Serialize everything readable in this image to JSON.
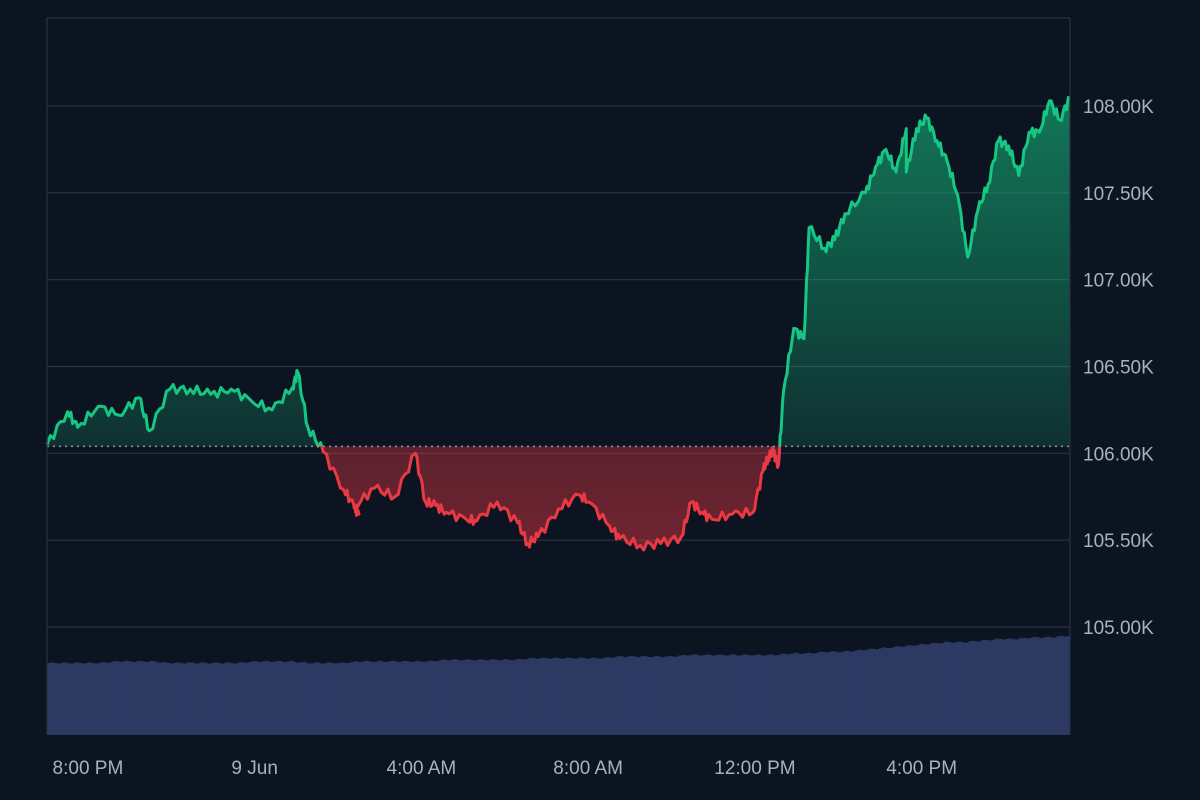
{
  "colors": {
    "background": "#0d1421",
    "grid": "#2a3344",
    "axis_text": "#a7b1c2",
    "up": "#16c784",
    "down": "#ea3943",
    "volume": "#2c3a63",
    "baseline": "#8c96a8"
  },
  "chart_data": {
    "type": "area",
    "title": "",
    "xlabel": "",
    "ylabel": "",
    "baseline": 106040,
    "ylim": [
      104400,
      108600
    ],
    "xlim": [
      0,
      1
    ],
    "y_ticks": [
      {
        "value": 105000,
        "label": "105.00K"
      },
      {
        "value": 105500,
        "label": "105.50K"
      },
      {
        "value": 106000,
        "label": "106.00K"
      },
      {
        "value": 106500,
        "label": "106.50K"
      },
      {
        "value": 107000,
        "label": "107.00K"
      },
      {
        "value": 107500,
        "label": "107.50K"
      },
      {
        "value": 108000,
        "label": "108.00K"
      }
    ],
    "x_ticks": [
      {
        "x": 0.04,
        "label": "8:00 PM"
      },
      {
        "x": 0.203,
        "label": "9 Jun"
      },
      {
        "x": 0.366,
        "label": "4:00 AM"
      },
      {
        "x": 0.529,
        "label": "8:00 AM"
      },
      {
        "x": 0.692,
        "label": "12:00 PM"
      },
      {
        "x": 0.855,
        "label": "4:00 PM"
      }
    ],
    "price": {
      "x": [
        0.0,
        0.02,
        0.03,
        0.05,
        0.07,
        0.09,
        0.1,
        0.12,
        0.14,
        0.16,
        0.18,
        0.2,
        0.22,
        0.24,
        0.245,
        0.255,
        0.27,
        0.29,
        0.3,
        0.305,
        0.3,
        0.32,
        0.34,
        0.36,
        0.37,
        0.38,
        0.39,
        0.41,
        0.42,
        0.44,
        0.46,
        0.47,
        0.48,
        0.5,
        0.52,
        0.53,
        0.55,
        0.56,
        0.58,
        0.6,
        0.62,
        0.63,
        0.64,
        0.65,
        0.67,
        0.69,
        0.7,
        0.705,
        0.71,
        0.715,
        0.72,
        0.73,
        0.74,
        0.745,
        0.76,
        0.77,
        0.78,
        0.8,
        0.81,
        0.82,
        0.83,
        0.84,
        0.84,
        0.85,
        0.86,
        0.87,
        0.88,
        0.89,
        0.9,
        0.91,
        0.92,
        0.93,
        0.94,
        0.95,
        0.96,
        0.97,
        0.98,
        0.99,
        1.0
      ],
      "y": [
        106050,
        106240,
        106150,
        106270,
        106220,
        106320,
        106130,
        106370,
        106370,
        106340,
        106370,
        106300,
        106250,
        106380,
        106470,
        106150,
        106010,
        105790,
        105700,
        105650,
        105690,
        105800,
        105750,
        106000,
        105720,
        105700,
        105660,
        105620,
        105610,
        105720,
        105600,
        105480,
        105520,
        105680,
        105760,
        105720,
        105580,
        105510,
        105470,
        105480,
        105520,
        105720,
        105660,
        105620,
        105650,
        105660,
        105900,
        105980,
        106010,
        105930,
        106360,
        106720,
        106660,
        107300,
        107180,
        107230,
        107380,
        107500,
        107650,
        107750,
        107620,
        107870,
        107620,
        107870,
        107930,
        107800,
        107680,
        107490,
        107130,
        107400,
        107550,
        107800,
        107770,
        107600,
        107850,
        107850,
        108030,
        107920,
        108050
      ],
      "note": "values above baseline drawn green, below baseline drawn red"
    },
    "volume": {
      "values": [
        0.45,
        0.45,
        0.45,
        0.45,
        0.46,
        0.46,
        0.46,
        0.45,
        0.45,
        0.45,
        0.45,
        0.45,
        0.46,
        0.46,
        0.46,
        0.45,
        0.45,
        0.45,
        0.46,
        0.46,
        0.46,
        0.46,
        0.46,
        0.47,
        0.47,
        0.47,
        0.47,
        0.47,
        0.48,
        0.48,
        0.48,
        0.48,
        0.48,
        0.49,
        0.49,
        0.49,
        0.49,
        0.5,
        0.5,
        0.5,
        0.5,
        0.5,
        0.5,
        0.51,
        0.51,
        0.52,
        0.52,
        0.53,
        0.54,
        0.55,
        0.56,
        0.57,
        0.58,
        0.58,
        0.59,
        0.6,
        0.6,
        0.61,
        0.61,
        0.62
      ],
      "range": [
        0,
        1
      ]
    }
  }
}
